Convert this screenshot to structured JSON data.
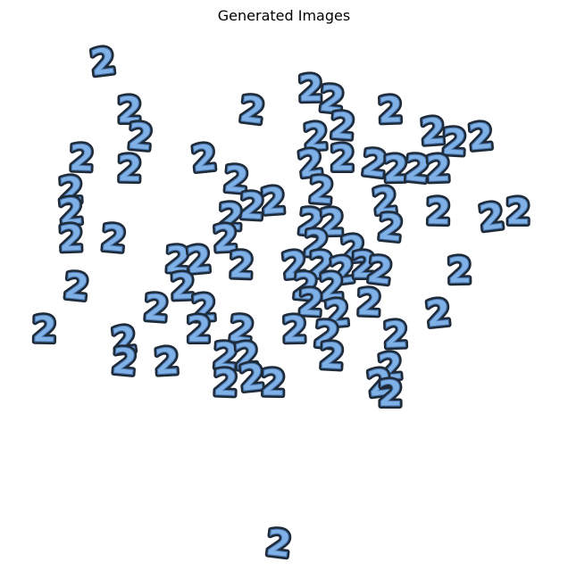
{
  "chart_data": {
    "type": "scatter",
    "title": "Generated Images",
    "marker_label": "2",
    "marker_colors": {
      "fill": "#7fb0e6",
      "outline": "#1f2a38",
      "edge": "#4a78b0"
    },
    "axes_visible": false,
    "grid": false,
    "xlim": [
      0,
      1
    ],
    "ylim": [
      0,
      1
    ],
    "points": [
      {
        "x": 0.16,
        "y": 0.95
      },
      {
        "x": 0.21,
        "y": 0.86
      },
      {
        "x": 0.44,
        "y": 0.86
      },
      {
        "x": 0.55,
        "y": 0.9
      },
      {
        "x": 0.59,
        "y": 0.88
      },
      {
        "x": 0.7,
        "y": 0.86
      },
      {
        "x": 0.23,
        "y": 0.81
      },
      {
        "x": 0.56,
        "y": 0.81
      },
      {
        "x": 0.61,
        "y": 0.83
      },
      {
        "x": 0.78,
        "y": 0.82
      },
      {
        "x": 0.82,
        "y": 0.8
      },
      {
        "x": 0.87,
        "y": 0.81
      },
      {
        "x": 0.12,
        "y": 0.77
      },
      {
        "x": 0.35,
        "y": 0.77
      },
      {
        "x": 0.21,
        "y": 0.75
      },
      {
        "x": 0.55,
        "y": 0.76
      },
      {
        "x": 0.61,
        "y": 0.77
      },
      {
        "x": 0.67,
        "y": 0.76
      },
      {
        "x": 0.71,
        "y": 0.75
      },
      {
        "x": 0.75,
        "y": 0.75
      },
      {
        "x": 0.79,
        "y": 0.75
      },
      {
        "x": 0.41,
        "y": 0.73
      },
      {
        "x": 0.1,
        "y": 0.71
      },
      {
        "x": 0.57,
        "y": 0.71
      },
      {
        "x": 0.48,
        "y": 0.69
      },
      {
        "x": 0.44,
        "y": 0.68
      },
      {
        "x": 0.1,
        "y": 0.67
      },
      {
        "x": 0.4,
        "y": 0.66
      },
      {
        "x": 0.69,
        "y": 0.69
      },
      {
        "x": 0.79,
        "y": 0.67
      },
      {
        "x": 0.89,
        "y": 0.66
      },
      {
        "x": 0.94,
        "y": 0.67
      },
      {
        "x": 0.55,
        "y": 0.65
      },
      {
        "x": 0.59,
        "y": 0.65
      },
      {
        "x": 0.7,
        "y": 0.64
      },
      {
        "x": 0.1,
        "y": 0.62
      },
      {
        "x": 0.18,
        "y": 0.62
      },
      {
        "x": 0.39,
        "y": 0.62
      },
      {
        "x": 0.56,
        "y": 0.61
      },
      {
        "x": 0.63,
        "y": 0.6
      },
      {
        "x": 0.3,
        "y": 0.58
      },
      {
        "x": 0.34,
        "y": 0.58
      },
      {
        "x": 0.42,
        "y": 0.57
      },
      {
        "x": 0.52,
        "y": 0.57
      },
      {
        "x": 0.57,
        "y": 0.57
      },
      {
        "x": 0.61,
        "y": 0.56
      },
      {
        "x": 0.65,
        "y": 0.57
      },
      {
        "x": 0.68,
        "y": 0.56
      },
      {
        "x": 0.83,
        "y": 0.56
      },
      {
        "x": 0.11,
        "y": 0.53
      },
      {
        "x": 0.31,
        "y": 0.53
      },
      {
        "x": 0.54,
        "y": 0.53
      },
      {
        "x": 0.59,
        "y": 0.53
      },
      {
        "x": 0.26,
        "y": 0.49
      },
      {
        "x": 0.35,
        "y": 0.49
      },
      {
        "x": 0.55,
        "y": 0.5
      },
      {
        "x": 0.6,
        "y": 0.48
      },
      {
        "x": 0.66,
        "y": 0.5
      },
      {
        "x": 0.79,
        "y": 0.48
      },
      {
        "x": 0.05,
        "y": 0.45
      },
      {
        "x": 0.2,
        "y": 0.43
      },
      {
        "x": 0.34,
        "y": 0.45
      },
      {
        "x": 0.42,
        "y": 0.45
      },
      {
        "x": 0.52,
        "y": 0.45
      },
      {
        "x": 0.58,
        "y": 0.44
      },
      {
        "x": 0.71,
        "y": 0.44
      },
      {
        "x": 0.2,
        "y": 0.39
      },
      {
        "x": 0.28,
        "y": 0.39
      },
      {
        "x": 0.39,
        "y": 0.4
      },
      {
        "x": 0.43,
        "y": 0.4
      },
      {
        "x": 0.59,
        "y": 0.4
      },
      {
        "x": 0.7,
        "y": 0.38
      },
      {
        "x": 0.39,
        "y": 0.35
      },
      {
        "x": 0.44,
        "y": 0.36
      },
      {
        "x": 0.48,
        "y": 0.35
      },
      {
        "x": 0.68,
        "y": 0.35
      },
      {
        "x": 0.7,
        "y": 0.33
      },
      {
        "x": 0.49,
        "y": 0.05
      }
    ]
  }
}
